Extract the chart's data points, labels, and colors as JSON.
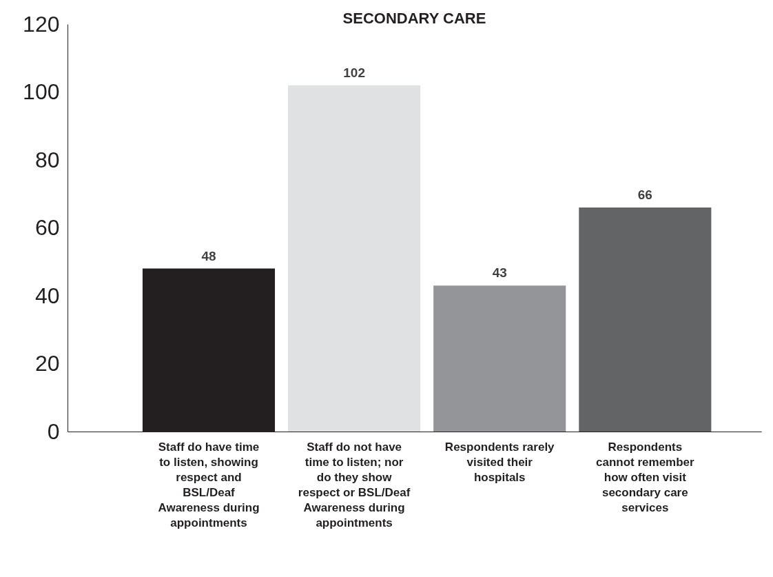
{
  "chart_data": {
    "type": "bar",
    "title": "SECONDARY CARE",
    "categories": [
      "Staff do have time to listen, showing respect and BSL/Deaf Awareness during appointments",
      "Staff do not have time to listen; nor do they show respect or BSL/Deaf Awareness during appointments",
      "Respondents rarely visited their hospitals",
      "Respondents cannot remember how often visit secondary care services"
    ],
    "values": [
      48,
      102,
      43,
      66
    ],
    "colors": [
      "#231f20",
      "#e0e1e3",
      "#939598",
      "#636466"
    ],
    "ylim": [
      0,
      120
    ],
    "yticks": [
      0,
      20,
      40,
      60,
      80,
      100,
      120
    ],
    "grid": false,
    "data_labels": true
  }
}
